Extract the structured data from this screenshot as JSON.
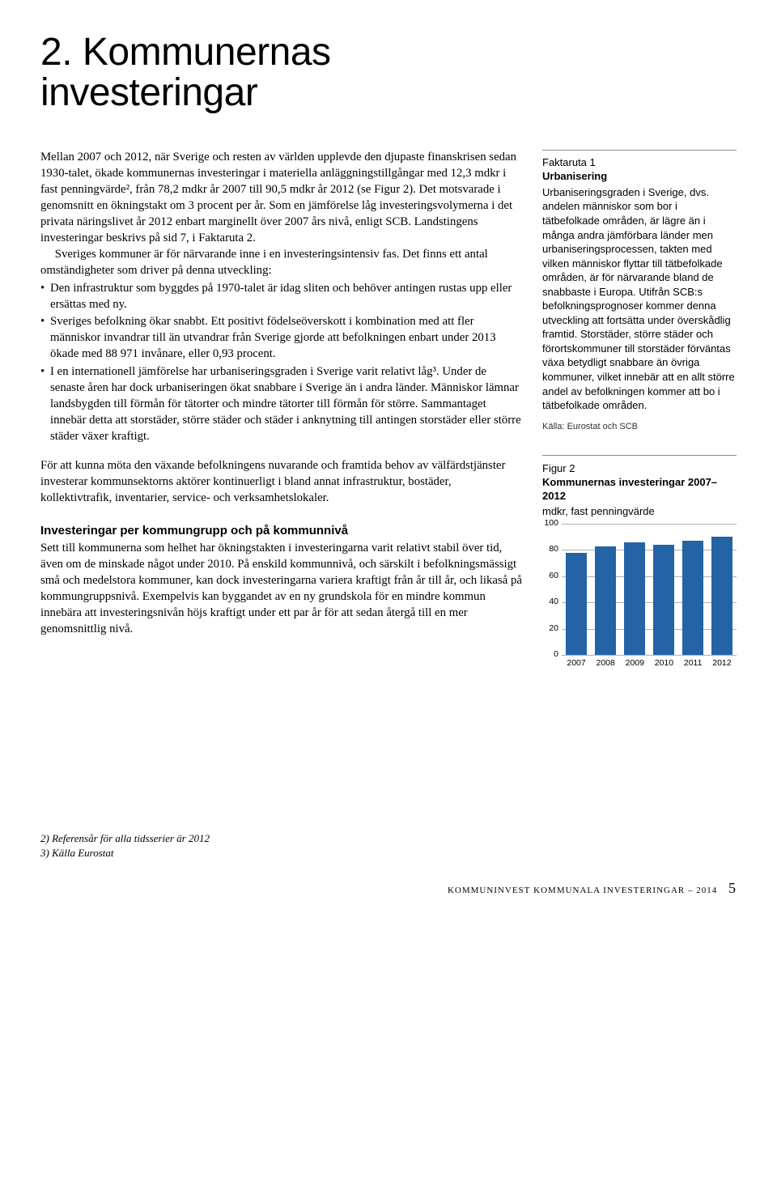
{
  "title_l1": "2. Kommunernas",
  "title_l2": "investeringar",
  "main": {
    "p1": "Mellan 2007 och 2012, när Sverige och resten av världen upplevde den djupaste finanskrisen sedan 1930-talet, ökade kommunernas investeringar i materiella anläggningstillgångar med 12,3 mdkr i fast penningvärde², från 78,2 mdkr år 2007 till 90,5 mdkr år 2012 (se Figur 2). Det motsvarade i genomsnitt en ökningstakt om 3 procent per år. Som en jämförelse låg investeringsvolymerna i det privata näringslivet år 2012 enbart marginellt över 2007 års nivå, enligt SCB. Landstingens investeringar beskrivs på sid 7, i Faktaruta 2.",
    "p1b": "Sveriges kommuner är för närvarande inne i en investeringsintensiv fas. Det finns ett antal omständigheter som driver på denna utveckling:",
    "b1": "Den infrastruktur som byggdes på 1970-talet är idag sliten och behöver antingen rustas upp eller ersättas med ny.",
    "b2": "Sveriges befolkning ökar snabbt. Ett positivt födelseöverskott i kombination med att fler människor invandrar till än utvandrar från Sverige gjorde att befolkningen enbart under 2013 ökade med 88 971 invånare, eller 0,93 procent.",
    "b3": "I en internationell jämförelse har urbaniseringsgraden i Sverige varit relativt låg³. Under de senaste åren har dock urbaniseringen ökat snabbare i Sverige än i andra länder. Människor lämnar landsbygden till förmån för tätorter och mindre tätorter till förmån för större. Sammantaget innebär detta att storstäder, större städer och städer i anknytning till antingen storstäder eller större städer växer kraftigt.",
    "p2": "För att kunna möta den växande befolkningens nuvarande och framtida behov av välfärdstjänster investerar kommunsektorns aktörer kontinuerligt i bland annat infrastruktur, bostäder, kollektivtrafik, inventarier, service- och verksamhetslokaler.",
    "sub": "Investeringar per kommungrupp och på kommunnivå",
    "p3": "Sett till kommunerna som helhet har ökningstakten i investeringarna varit relativt stabil över tid, även om de minskade något under 2010. På enskild kommunnivå, och särskilt i befolkningsmässigt små och medelstora kommuner, kan dock investeringarna variera kraftigt från år till år, och likaså på kommungruppsnivå. Exempelvis kan byggandet av en ny grundskola för en mindre kommun innebära att investeringsnivån höjs kraftigt under ett par år för att sedan återgå till en mer genomsnittlig nivå."
  },
  "fakt": {
    "label": "Faktaruta 1",
    "title": "Urbanisering",
    "body": "Urbaniseringsgraden i Sverige, dvs. andelen människor som bor i tätbefolkade områden, är lägre än i många andra jämförbara länder men urbaniseringsprocessen, takten med vilken människor flyttar till tätbefolkade områden, är för närvarande bland de snabbaste i Europa. Utifrån SCB:s befolkningsprognoser kommer denna utveckling att fortsätta under överskådlig framtid. Storstäder, större städer och förortskommuner till storstäder förväntas växa betydligt snabbare än övriga kommuner, vilket innebär att en allt större andel av befolkningen kommer att bo i tätbefolkade områden.",
    "src": "Källa: Eurostat och SCB"
  },
  "fig": {
    "label": "Figur 2",
    "title": "Kommunernas investeringar 2007–2012",
    "sub": "mdkr, fast penningvärde",
    "type": "bar",
    "ylim": [
      0,
      100
    ],
    "yticks": [
      0,
      20,
      40,
      60,
      80,
      100
    ],
    "categories": [
      "2007",
      "2008",
      "2009",
      "2010",
      "2011",
      "2012"
    ],
    "values": [
      78,
      83,
      86,
      84,
      87,
      90
    ],
    "bar_color": "#2463a6",
    "grid_color": "#b0b0b0",
    "label_fontsize": 10.5
  },
  "fn": {
    "f2": "2) Referensår för alla tidsserier är 2012",
    "f3": "3) Källa Eurostat"
  },
  "footer": {
    "a": "kommuninvest",
    "b": "kommunala investeringar – 2014",
    "page": "5"
  }
}
